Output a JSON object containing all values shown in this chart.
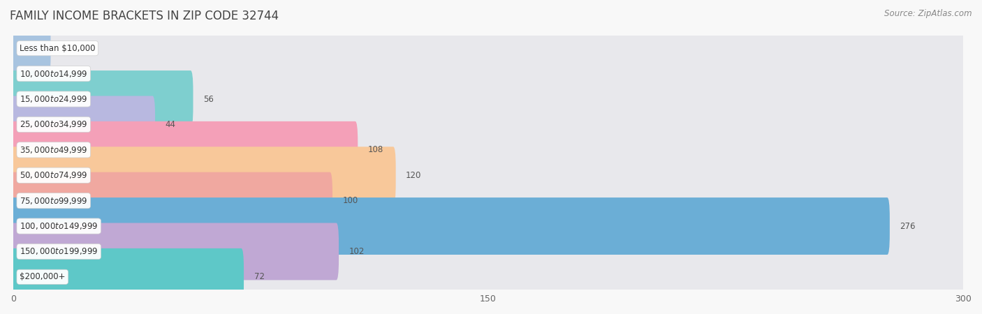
{
  "title": "FAMILY INCOME BRACKETS IN ZIP CODE 32744",
  "source": "Source: ZipAtlas.com",
  "categories": [
    "Less than $10,000",
    "$10,000 to $14,999",
    "$15,000 to $24,999",
    "$25,000 to $34,999",
    "$35,000 to $49,999",
    "$50,000 to $74,999",
    "$75,000 to $99,999",
    "$100,000 to $149,999",
    "$150,000 to $199,999",
    "$200,000+"
  ],
  "values": [
    11,
    0,
    56,
    44,
    108,
    120,
    100,
    276,
    102,
    72
  ],
  "bar_colors": [
    "#a8c4e0",
    "#c9b8d8",
    "#7ecfcf",
    "#b8b8e0",
    "#f4a0b8",
    "#f8c89a",
    "#f0a8a0",
    "#6baed6",
    "#c0a8d4",
    "#5ec8c8"
  ],
  "bar_bg_color": "#e8e8ec",
  "fig_bg_color": "#f8f8f8",
  "row_bg_colors": [
    "#f2f2f2",
    "#f8f8f8"
  ],
  "xlim_data": [
    0,
    300
  ],
  "xticks": [
    0,
    150,
    300
  ],
  "bar_height": 0.65,
  "title_fontsize": 12,
  "source_fontsize": 8.5,
  "label_fontsize": 8.5,
  "value_fontsize": 8.5
}
